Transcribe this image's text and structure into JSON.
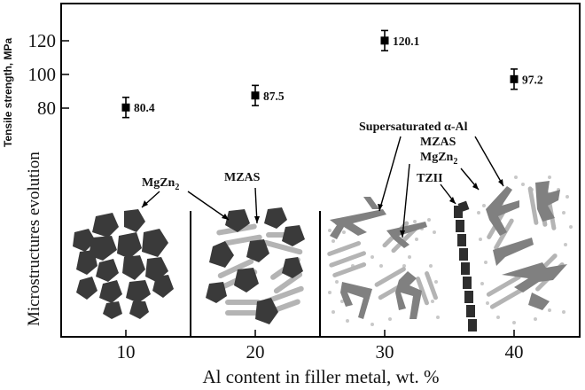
{
  "chart_data": {
    "type": "scatter",
    "title": "",
    "xlabel": "Al content in filler metal, wt. %",
    "ylabel": "Tensile strength, MPa",
    "x_ticks": [
      10,
      20,
      30,
      40
    ],
    "y_ticks": [
      80,
      100,
      120
    ],
    "ylim": [
      62,
      132
    ],
    "grid": false,
    "series": [
      {
        "x": [
          10,
          20,
          30,
          40
        ],
        "values": [
          80.4,
          87.5,
          120.1,
          97.2
        ],
        "value_labels": [
          "80.4",
          "87.5",
          "120.1",
          "97.2"
        ],
        "error": [
          6,
          6,
          6,
          6
        ]
      }
    ]
  },
  "diagram": {
    "side_title": "Microstructures evolution",
    "annotations": {
      "mgzn2_left": "MgZn",
      "mgzn2_left_sub": "2",
      "mzas_left": "MZAS",
      "supersaturated": "Supersaturated α-Al",
      "mzas_right": "MZAS",
      "mgzn2_right": "MgZn",
      "mgzn2_right_sub": "2",
      "tzii": "TZII"
    }
  },
  "colors": {
    "frame": "#000000",
    "mgzn2": "#3a3a3a",
    "mzas": "#b4b4b4",
    "alpha_al": "#808080",
    "dots": "#c8c8c8"
  }
}
